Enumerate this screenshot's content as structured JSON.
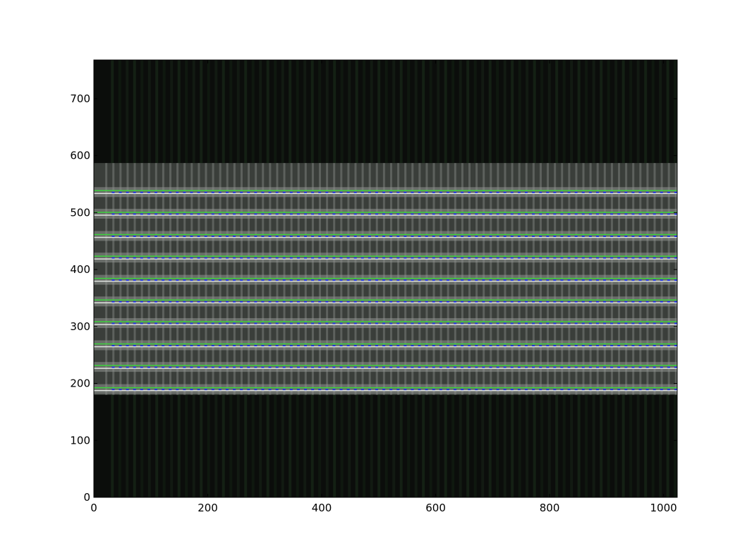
{
  "chart_data": {
    "type": "heatmap",
    "title": "",
    "xlabel": "",
    "ylabel": "",
    "xlim": [
      0,
      1024
    ],
    "ylim": [
      0,
      768
    ],
    "x_ticks": [
      0,
      200,
      400,
      600,
      800,
      1000
    ],
    "y_ticks": [
      0,
      100,
      200,
      300,
      400,
      500,
      600,
      700
    ],
    "x_tick_labels": [
      "0",
      "200",
      "400",
      "600",
      "800",
      "1000"
    ],
    "y_tick_labels": [
      "0",
      "100",
      "200",
      "300",
      "400",
      "500",
      "600",
      "700"
    ],
    "bright_band_y_range": [
      180,
      587
    ],
    "trace_rows": [
      190,
      229,
      267,
      306,
      344,
      382,
      421,
      459,
      498,
      536
    ],
    "trace_x_range": [
      34,
      1024
    ],
    "trace_colors": {
      "fit_line": "#3cd23c",
      "marker": "#1e32dc"
    },
    "grid": false,
    "colormap": "gray"
  }
}
